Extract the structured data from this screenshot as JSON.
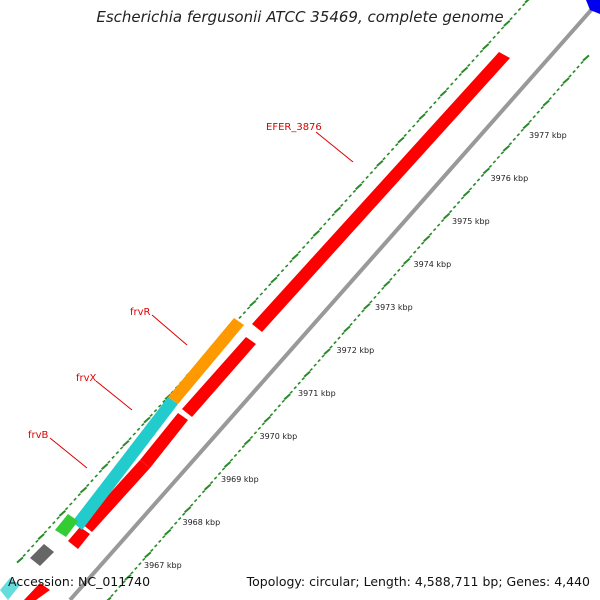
{
  "title": "Escherichia fergusonii ATCC 35469, complete genome",
  "footer": {
    "accession": "Accession: NC_011740",
    "summary": "Topology: circular; Length: 4,588,711 bp; Genes: 4,440"
  },
  "colors": {
    "gene_red": "#ff0000",
    "orange": "#ff9900",
    "cyan": "#22cccc",
    "green": "#33cc33",
    "gray": "#666666",
    "backbone": "#999999",
    "tick_green": "#2a8a2a",
    "label_red": "#dd0000",
    "blue": "#0000ee"
  },
  "ruler": {
    "unit": "kbp",
    "ticks": [
      {
        "kbp": 3967,
        "label": "3967 kbp"
      },
      {
        "kbp": 3968,
        "label": "3968 kbp"
      },
      {
        "kbp": 3969,
        "label": "3969 kbp"
      },
      {
        "kbp": 3970,
        "label": "3970 kbp"
      },
      {
        "kbp": 3971,
        "label": "3971 kbp"
      },
      {
        "kbp": 3972,
        "label": "3972 kbp"
      },
      {
        "kbp": 3973,
        "label": "3973 kbp"
      },
      {
        "kbp": 3974,
        "label": "3974 kbp"
      },
      {
        "kbp": 3975,
        "label": "3975 kbp"
      },
      {
        "kbp": 3976,
        "label": "3976 kbp"
      },
      {
        "kbp": 3977,
        "label": "3977 kbp"
      }
    ]
  },
  "gene_labels": [
    {
      "id": "efer3876",
      "text": "EFER_3876"
    },
    {
      "id": "frvR",
      "text": "frvR"
    },
    {
      "id": "frvX",
      "text": "frvX"
    },
    {
      "id": "frvB",
      "text": "frvB"
    }
  ]
}
